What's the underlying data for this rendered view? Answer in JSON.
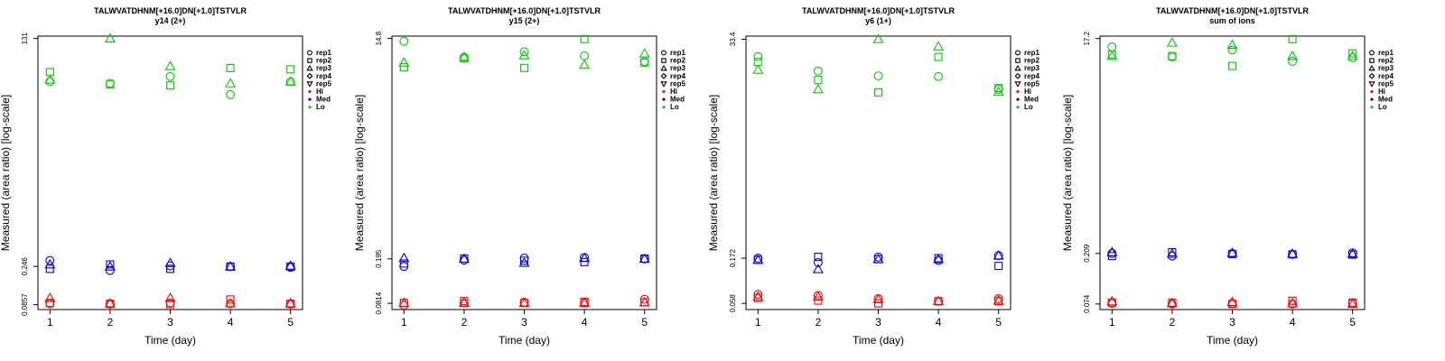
{
  "colors": {
    "Hi": "#ff0000",
    "Med": "#0000ff",
    "Lo": "#00cc00",
    "axis": "#000000"
  },
  "legend": {
    "items": [
      {
        "label": "rep1",
        "marker": "circle"
      },
      {
        "label": "rep2",
        "marker": "square"
      },
      {
        "label": "rep3",
        "marker": "triangle-up"
      },
      {
        "label": "rep4",
        "marker": "diamond"
      },
      {
        "label": "rep5",
        "marker": "triangle-down"
      },
      {
        "label": "Hi",
        "marker": "dot",
        "color": "#ff0000"
      },
      {
        "label": "Med",
        "marker": "dot",
        "color": "#0000ff"
      },
      {
        "label": "Lo",
        "marker": "dot",
        "color": "#00cc00"
      }
    ]
  },
  "chart_data": [
    {
      "type": "scatter",
      "title": "TALWVATDHNM[+16.0]DN[+1.0]TSTVLR",
      "subtitle": "y14 (2+)",
      "xlabel": "Time (day)",
      "ylabel": "Measured (area ratio) [log-scale]",
      "yscale": "log",
      "x_ticks": [
        1,
        2,
        3,
        4,
        5
      ],
      "y_ticks": [
        "131",
        "0.246",
        "0.0857"
      ],
      "y_tick_values": [
        131,
        0.246,
        0.0857
      ],
      "ylim": [
        0.075,
        140
      ],
      "xlim": [
        0.8,
        5.2
      ],
      "legend_position": "right",
      "series": [
        {
          "group": "Lo",
          "rep": "rep1",
          "x": [
            1,
            2,
            3,
            4,
            5
          ],
          "y": [
            40,
            38,
            46,
            28,
            40
          ]
        },
        {
          "group": "Lo",
          "rep": "rep2",
          "x": [
            1,
            2,
            3,
            4,
            5
          ],
          "y": [
            52,
            37,
            36,
            58,
            56
          ]
        },
        {
          "group": "Lo",
          "rep": "rep3",
          "x": [
            1,
            2,
            3,
            4,
            5
          ],
          "y": [
            42,
            131,
            61,
            38,
            40
          ]
        },
        {
          "group": "Med",
          "rep": "rep1",
          "x": [
            1,
            2,
            3,
            4,
            5
          ],
          "y": [
            0.29,
            0.22,
            0.25,
            0.245,
            0.24
          ]
        },
        {
          "group": "Med",
          "rep": "rep2",
          "x": [
            1,
            2,
            3,
            4,
            5
          ],
          "y": [
            0.23,
            0.26,
            0.23,
            0.245,
            0.245
          ]
        },
        {
          "group": "Med",
          "rep": "rep3",
          "x": [
            1,
            2,
            3,
            4,
            5
          ],
          "y": [
            0.26,
            0.245,
            0.27,
            0.245,
            0.25
          ]
        },
        {
          "group": "Hi",
          "rep": "rep1",
          "x": [
            1,
            2,
            3,
            4,
            5
          ],
          "y": [
            0.088,
            0.087,
            0.09,
            0.088,
            0.087
          ]
        },
        {
          "group": "Hi",
          "rep": "rep2",
          "x": [
            1,
            2,
            3,
            4,
            5
          ],
          "y": [
            0.09,
            0.088,
            0.087,
            0.099,
            0.088
          ]
        },
        {
          "group": "Hi",
          "rep": "rep3",
          "x": [
            1,
            2,
            3,
            4,
            5
          ],
          "y": [
            0.103,
            0.089,
            0.103,
            0.089,
            0.089
          ]
        }
      ]
    },
    {
      "type": "scatter",
      "title": "TALWVATDHNM[+16.0]DN[+1.0]TSTVLR",
      "subtitle": "y15 (2+)",
      "xlabel": "Time (day)",
      "ylabel": "Measured (area ratio) [log-scale]",
      "yscale": "log",
      "x_ticks": [
        1,
        2,
        3,
        4,
        5
      ],
      "y_ticks": [
        "14.8",
        "0.195",
        "0.0814"
      ],
      "y_tick_values": [
        14.8,
        0.195,
        0.0814
      ],
      "ylim": [
        0.072,
        15.5
      ],
      "xlim": [
        0.8,
        5.2
      ],
      "legend_position": "right",
      "series": [
        {
          "group": "Lo",
          "rep": "rep1",
          "x": [
            1,
            2,
            3,
            4,
            5
          ],
          "y": [
            14.0,
            10.2,
            11.4,
            10.5,
            9.4
          ]
        },
        {
          "group": "Lo",
          "rep": "rep2",
          "x": [
            1,
            2,
            3,
            4,
            5
          ],
          "y": [
            8.4,
            10.0,
            8.3,
            14.6,
            9.2
          ]
        },
        {
          "group": "Lo",
          "rep": "rep3",
          "x": [
            1,
            2,
            3,
            4,
            5
          ],
          "y": [
            9.2,
            10.3,
            10.6,
            8.8,
            11.0
          ]
        },
        {
          "group": "Med",
          "rep": "rep1",
          "x": [
            1,
            2,
            3,
            4,
            5
          ],
          "y": [
            0.168,
            0.19,
            0.198,
            0.2,
            0.195
          ]
        },
        {
          "group": "Med",
          "rep": "rep2",
          "x": [
            1,
            2,
            3,
            4,
            5
          ],
          "y": [
            0.178,
            0.196,
            0.188,
            0.183,
            0.196
          ]
        },
        {
          "group": "Med",
          "rep": "rep3",
          "x": [
            1,
            2,
            3,
            4,
            5
          ],
          "y": [
            0.198,
            0.195,
            0.18,
            0.198,
            0.195
          ]
        },
        {
          "group": "Hi",
          "rep": "rep1",
          "x": [
            1,
            2,
            3,
            4,
            5
          ],
          "y": [
            0.0785,
            0.082,
            0.083,
            0.082,
            0.088
          ]
        },
        {
          "group": "Hi",
          "rep": "rep2",
          "x": [
            1,
            2,
            3,
            4,
            5
          ],
          "y": [
            0.082,
            0.085,
            0.082,
            0.084,
            0.083
          ]
        },
        {
          "group": "Hi",
          "rep": "rep3",
          "x": [
            1,
            2,
            3,
            4,
            5
          ],
          "y": [
            0.082,
            0.082,
            0.082,
            0.082,
            0.083
          ]
        }
      ]
    },
    {
      "type": "scatter",
      "title": "TALWVATDHNM[+16.0]DN[+1.0]TSTVLR",
      "subtitle": "y6 (1+)",
      "xlabel": "Time (day)",
      "ylabel": "Measured (area ratio) [log-scale]",
      "yscale": "log",
      "x_ticks": [
        1,
        2,
        3,
        4,
        5
      ],
      "y_ticks": [
        "33.4",
        "0.172",
        "0.058"
      ],
      "y_tick_values": [
        33.4,
        0.172,
        0.058
      ],
      "ylim": [
        0.05,
        36
      ],
      "xlim": [
        0.8,
        5.2
      ],
      "legend_position": "right",
      "series": [
        {
          "group": "Lo",
          "rep": "rep1",
          "x": [
            1,
            2,
            3,
            4,
            5
          ],
          "y": [
            22.0,
            15.5,
            13.8,
            13.6,
            10.0
          ]
        },
        {
          "group": "Lo",
          "rep": "rep2",
          "x": [
            1,
            2,
            3,
            4,
            5
          ],
          "y": [
            19.3,
            12.5,
            9.3,
            21.8,
            10.3
          ]
        },
        {
          "group": "Lo",
          "rep": "rep3",
          "x": [
            1,
            2,
            3,
            4,
            5
          ],
          "y": [
            16.0,
            10.0,
            33.4,
            28.0,
            9.4
          ]
        },
        {
          "group": "Med",
          "rep": "rep1",
          "x": [
            1,
            2,
            3,
            4,
            5
          ],
          "y": [
            0.172,
            0.155,
            0.177,
            0.163,
            0.183
          ]
        },
        {
          "group": "Med",
          "rep": "rep2",
          "x": [
            1,
            2,
            3,
            4,
            5
          ],
          "y": [
            0.165,
            0.178,
            0.168,
            0.172,
            0.143
          ]
        },
        {
          "group": "Med",
          "rep": "rep3",
          "x": [
            1,
            2,
            3,
            4,
            5
          ],
          "y": [
            0.165,
            0.132,
            0.168,
            0.168,
            0.183
          ]
        },
        {
          "group": "Hi",
          "rep": "rep1",
          "x": [
            1,
            2,
            3,
            4,
            5
          ],
          "y": [
            0.072,
            0.07,
            0.065,
            0.061,
            0.065
          ]
        },
        {
          "group": "Hi",
          "rep": "rep2",
          "x": [
            1,
            2,
            3,
            4,
            5
          ],
          "y": [
            0.066,
            0.062,
            0.058,
            0.061,
            0.061
          ]
        },
        {
          "group": "Hi",
          "rep": "rep3",
          "x": [
            1,
            2,
            3,
            4,
            5
          ],
          "y": [
            0.068,
            0.068,
            0.064,
            0.061,
            0.062
          ]
        }
      ]
    },
    {
      "type": "scatter",
      "title": "TALWVATDHNM[+16.0]DN[+1.0]TSTVLR",
      "subtitle": "sum of ions",
      "xlabel": "Time (day)",
      "ylabel": "Measured (area ratio) [log-scale]",
      "yscale": "log",
      "x_ticks": [
        1,
        2,
        3,
        4,
        5
      ],
      "y_ticks": [
        "17.2",
        "0.209",
        "0.074"
      ],
      "y_tick_values": [
        17.2,
        0.209,
        0.074
      ],
      "ylim": [
        0.066,
        18.1
      ],
      "xlim": [
        0.8,
        5.2
      ],
      "legend_position": "right",
      "series": [
        {
          "group": "Lo",
          "rep": "rep1",
          "x": [
            1,
            2,
            3,
            4,
            5
          ],
          "y": [
            14.5,
            11.8,
            13.6,
            10.8,
            11.6
          ]
        },
        {
          "group": "Lo",
          "rep": "rep2",
          "x": [
            1,
            2,
            3,
            4,
            5
          ],
          "y": [
            12.4,
            12.0,
            9.8,
            17.0,
            12.7
          ]
        },
        {
          "group": "Lo",
          "rep": "rep3",
          "x": [
            1,
            2,
            3,
            4,
            5
          ],
          "y": [
            12.0,
            15.8,
            15.1,
            12.0,
            12.0
          ]
        },
        {
          "group": "Med",
          "rep": "rep1",
          "x": [
            1,
            2,
            3,
            4,
            5
          ],
          "y": [
            0.209,
            0.198,
            0.209,
            0.205,
            0.211
          ]
        },
        {
          "group": "Med",
          "rep": "rep2",
          "x": [
            1,
            2,
            3,
            4,
            5
          ],
          "y": [
            0.198,
            0.214,
            0.206,
            0.205,
            0.204
          ]
        },
        {
          "group": "Med",
          "rep": "rep3",
          "x": [
            1,
            2,
            3,
            4,
            5
          ],
          "y": [
            0.214,
            0.207,
            0.211,
            0.207,
            0.207
          ]
        },
        {
          "group": "Hi",
          "rep": "rep1",
          "x": [
            1,
            2,
            3,
            4,
            5
          ],
          "y": [
            0.075,
            0.074,
            0.075,
            0.074,
            0.075
          ]
        },
        {
          "group": "Hi",
          "rep": "rep2",
          "x": [
            1,
            2,
            3,
            4,
            5
          ],
          "y": [
            0.076,
            0.076,
            0.074,
            0.079,
            0.076
          ]
        },
        {
          "group": "Hi",
          "rep": "rep3",
          "x": [
            1,
            2,
            3,
            4,
            5
          ],
          "y": [
            0.078,
            0.075,
            0.077,
            0.075,
            0.074
          ]
        }
      ]
    }
  ]
}
